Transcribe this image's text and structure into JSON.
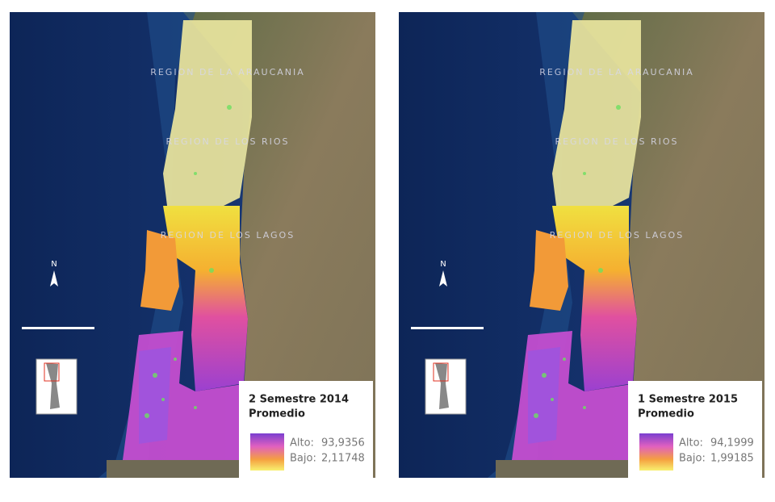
{
  "maps": [
    {
      "regions": [
        "REGION DE LA ARAUCANIA",
        "REGION DE LOS RIOS",
        "REGION DE LOS LAGOS"
      ],
      "north": "N",
      "legend": {
        "title": "2 Semestre 2014",
        "subtitle": "Promedio",
        "high": {
          "label": "Alto:",
          "value": "93,9356"
        },
        "low": {
          "label": "Bajo:",
          "value": "2,11748"
        }
      }
    },
    {
      "regions": [
        "REGION DE LA ARAUCANIA",
        "REGION DE LOS RIOS",
        "REGION DE LOS LAGOS"
      ],
      "north": "N",
      "legend": {
        "title": "1 Semestre 2015",
        "subtitle": "Promedio",
        "high": {
          "label": "Alto:",
          "value": "94,1999"
        },
        "low": {
          "label": "Bajo:",
          "value": "1,99185"
        }
      }
    }
  ]
}
